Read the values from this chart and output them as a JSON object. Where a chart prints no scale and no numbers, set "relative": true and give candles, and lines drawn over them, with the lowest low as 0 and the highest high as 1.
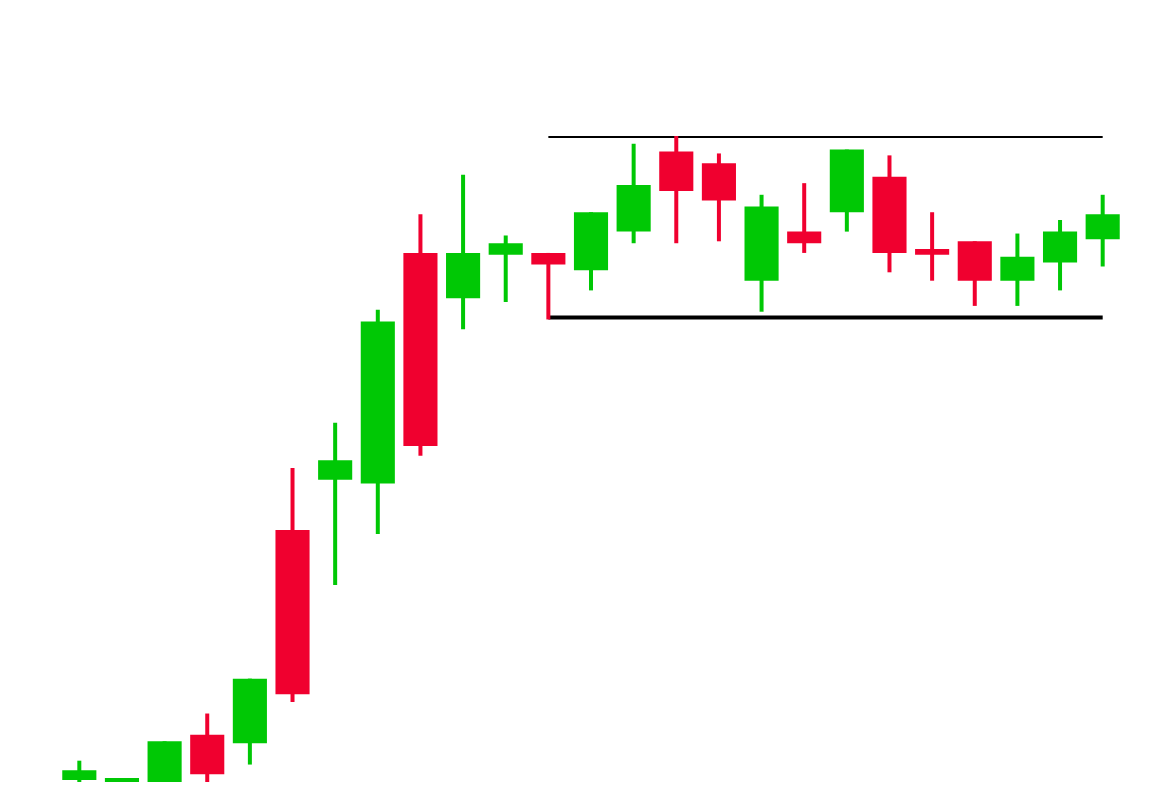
{
  "chart_data": {
    "type": "candlestick",
    "relative": true,
    "categories": [
      null,
      null,
      null,
      null,
      null,
      null,
      null,
      null,
      null,
      null,
      null,
      null,
      null,
      null,
      null,
      null,
      null,
      null,
      null,
      null,
      null,
      null,
      null,
      null,
      null
    ],
    "ohlc": [
      [
        0.003,
        0.033,
        0,
        0.018
      ],
      [
        0.003,
        0.006,
        0,
        0.006
      ],
      [
        0,
        0.063,
        0,
        0.063
      ],
      [
        0.073,
        0.106,
        0,
        0.012
      ],
      [
        0.06,
        0.16,
        0.027,
        0.16
      ],
      [
        0.39,
        0.486,
        0.124,
        0.136
      ],
      [
        0.468,
        0.556,
        0.305,
        0.498
      ],
      [
        0.462,
        0.731,
        0.384,
        0.713
      ],
      [
        0.819,
        0.879,
        0.505,
        0.52
      ],
      [
        0.749,
        0.94,
        0.701,
        0.819
      ],
      [
        0.816,
        0.846,
        0.743,
        0.834
      ],
      [
        0.819,
        0.819,
        0.716,
        0.801
      ],
      [
        0.792,
        0.882,
        0.761,
        0.882
      ],
      [
        0.852,
        0.988,
        0.834,
        0.924
      ],
      [
        0.976,
        1,
        0.834,
        0.915
      ],
      [
        0.958,
        0.973,
        0.837,
        0.9
      ],
      [
        0.776,
        0.909,
        0.728,
        0.891
      ],
      [
        0.852,
        0.927,
        0.819,
        0.834
      ],
      [
        0.882,
        0.979,
        0.852,
        0.979
      ],
      [
        0.937,
        0.97,
        0.789,
        0.819
      ],
      [
        0.825,
        0.882,
        0.776,
        0.816
      ],
      [
        0.837,
        0.837,
        0.737,
        0.776
      ],
      [
        0.776,
        0.849,
        0.737,
        0.813
      ],
      [
        0.804,
        0.87,
        0.761,
        0.852
      ],
      [
        0.84,
        0.909,
        0.798,
        0.879
      ]
    ],
    "colors": [
      "#00c805",
      "#00c805",
      "#00c805",
      "#f0002f",
      "#00c805",
      "#f0002f",
      "#00c805",
      "#00c805",
      "#f0002f",
      "#00c805",
      "#00c805",
      "#f0002f",
      "#00c805",
      "#00c805",
      "#f0002f",
      "#f0002f",
      "#00c805",
      "#f0002f",
      "#00c805",
      "#f0002f",
      "#f0002f",
      "#f0002f",
      "#00c805",
      "#00c805",
      "#00c805"
    ],
    "series": [
      {
        "type": "line",
        "color": "#000000",
        "values": [
          null,
          null,
          null,
          null,
          null,
          null,
          null,
          null,
          null,
          null,
          null,
          1,
          1,
          1,
          1,
          1,
          1,
          1,
          1,
          1,
          1,
          1,
          1,
          1,
          1
        ]
      },
      {
        "type": "line",
        "color": "#000000",
        "values": [
          null,
          null,
          null,
          null,
          null,
          null,
          null,
          null,
          null,
          null,
          null,
          0.719,
          0.719,
          0.719,
          0.719,
          0.719,
          0.719,
          0.719,
          0.719,
          0.719,
          0.719,
          0.719,
          0.719,
          0.719,
          0.719
        ]
      }
    ],
    "marker": "none"
  }
}
